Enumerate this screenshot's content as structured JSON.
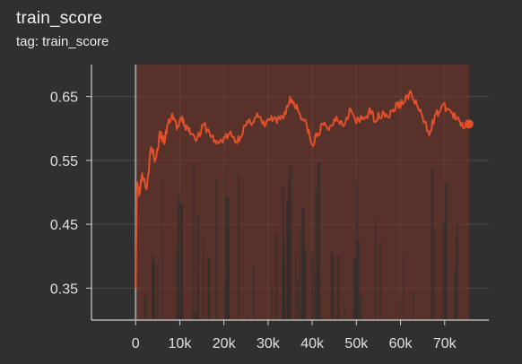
{
  "card": {
    "title": "train_score",
    "tag": "tag: train_score"
  },
  "colors": {
    "background": "#303030",
    "grid": "#4a4a4a",
    "series": "#e0502b",
    "band": "#7a3526",
    "axis": "#cfcfcf"
  },
  "chart_data": {
    "type": "line",
    "title": "train_score",
    "xlabel": "",
    "ylabel": "",
    "xlim": [
      -10000,
      80000
    ],
    "ylim": [
      0.3,
      0.7
    ],
    "x_ticks": [
      0,
      10000,
      20000,
      30000,
      40000,
      50000,
      60000,
      70000
    ],
    "x_tick_labels": [
      "0",
      "10k",
      "20k",
      "30k",
      "40k",
      "50k",
      "60k",
      "70k"
    ],
    "y_ticks": [
      0.35,
      0.45,
      0.55,
      0.65
    ],
    "y_tick_labels": [
      "0.35",
      "0.45",
      "0.55",
      "0.65"
    ],
    "grid": true,
    "series": [
      {
        "smoothed": {
          "x": [
            0,
            300,
            800,
            1500,
            2500,
            3500,
            4500,
            5500,
            6500,
            7500,
            8500,
            9500,
            10500,
            11500,
            12500,
            14000,
            15500,
            17000,
            18500,
            20000,
            21500,
            23000,
            24500,
            26000,
            27500,
            29000,
            30500,
            32000,
            33500,
            35000,
            36000,
            37500,
            39000,
            40000,
            41000,
            42500,
            44000,
            45500,
            47000,
            48500,
            50000,
            51500,
            53000,
            54500,
            56000,
            57500,
            59000,
            60500,
            62000,
            63500,
            65000,
            66500,
            68000,
            69500,
            71000,
            72500,
            74000,
            75500
          ],
          "y": [
            0.35,
            0.52,
            0.5,
            0.53,
            0.51,
            0.57,
            0.55,
            0.59,
            0.58,
            0.61,
            0.62,
            0.6,
            0.615,
            0.6,
            0.595,
            0.585,
            0.605,
            0.59,
            0.575,
            0.585,
            0.59,
            0.58,
            0.6,
            0.61,
            0.62,
            0.605,
            0.615,
            0.61,
            0.62,
            0.645,
            0.64,
            0.62,
            0.6,
            0.57,
            0.59,
            0.605,
            0.6,
            0.62,
            0.605,
            0.63,
            0.61,
            0.615,
            0.625,
            0.615,
            0.625,
            0.62,
            0.635,
            0.64,
            0.655,
            0.64,
            0.615,
            0.595,
            0.62,
            0.635,
            0.63,
            0.615,
            0.605,
            0.607
          ]
        },
        "raw_range": {
          "low": 0.3,
          "high": 0.7
        }
      }
    ]
  }
}
